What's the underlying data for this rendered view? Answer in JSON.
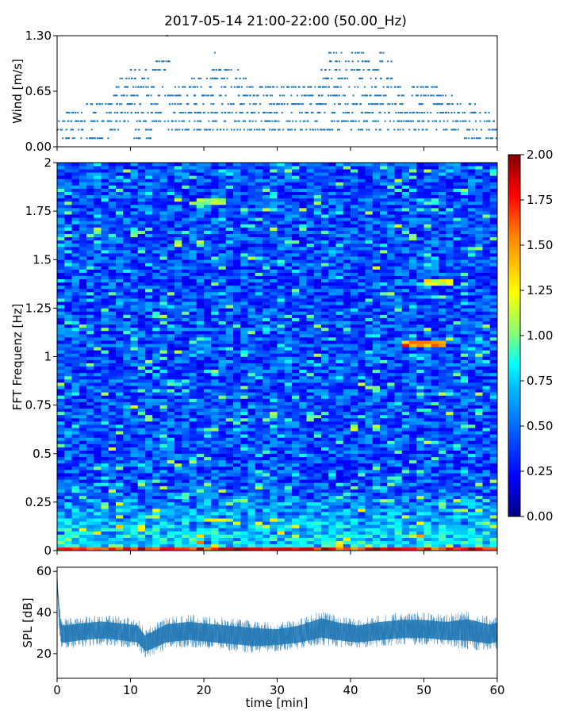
{
  "title": "2017-05-14 21:00-22:00 (50.00_Hz)",
  "colors": {
    "series": "#1f77b4",
    "colormap": [
      "#00007f",
      "#0000ff",
      "#007fff",
      "#00ffff",
      "#7fff7f",
      "#ffff00",
      "#ff7f00",
      "#ff0000",
      "#7f0000"
    ]
  },
  "chart_data": [
    {
      "id": "wind",
      "type": "scatter",
      "title": "2017-05-14 21:00-22:00 (50.00_Hz)",
      "xlabel": "",
      "ylabel": "Wind [m/s]",
      "xlim": [
        0,
        60
      ],
      "ylim": [
        0,
        1.3
      ],
      "yticks": [
        "0.00",
        "0.65",
        "1.30"
      ],
      "ytick_values": [
        0,
        0.65,
        1.3
      ],
      "x_tick_values": [
        0,
        10,
        20,
        30,
        40,
        50,
        60
      ],
      "value_levels": [
        0.1,
        0.2,
        0.3,
        0.4,
        0.5,
        0.6,
        0.7,
        0.8,
        0.9,
        1.0,
        1.1,
        1.3
      ],
      "level_ranges": [
        {
          "y": 0.1,
          "x": [
            [
              0,
              7
            ],
            [
              10,
              13
            ],
            [
              55,
              60
            ]
          ]
        },
        {
          "y": 0.2,
          "x": [
            [
              0,
              5
            ],
            [
              7,
              50
            ],
            [
              50,
              60
            ]
          ]
        },
        {
          "y": 0.3,
          "x": [
            [
              0,
              60
            ]
          ]
        },
        {
          "y": 0.4,
          "x": [
            [
              1,
              59
            ]
          ]
        },
        {
          "y": 0.5,
          "x": [
            [
              4,
              58
            ]
          ]
        },
        {
          "y": 0.6,
          "x": [
            [
              7,
              54
            ]
          ]
        },
        {
          "y": 0.7,
          "x": [
            [
              8,
              53
            ]
          ]
        },
        {
          "y": 0.8,
          "x": [
            [
              8,
              13
            ],
            [
              18,
              26
            ],
            [
              36,
              46
            ]
          ]
        },
        {
          "y": 0.9,
          "x": [
            [
              10,
              15
            ],
            [
              21,
              25
            ],
            [
              36,
              44
            ]
          ]
        },
        {
          "y": 1.0,
          "x": [
            [
              13,
              16
            ],
            [
              37,
              43
            ],
            [
              44,
              46
            ]
          ]
        },
        {
          "y": 1.1,
          "x": [
            [
              21.5,
              21.5
            ],
            [
              37,
              42
            ],
            [
              44,
              45
            ]
          ]
        },
        {
          "y": 1.3,
          "x": [
            [
              15,
              15
            ]
          ]
        }
      ]
    },
    {
      "id": "spectrogram",
      "type": "heatmap",
      "xlabel": "",
      "ylabel": "FFT Frequenz [Hz]",
      "xlim": [
        0,
        60
      ],
      "ylim": [
        0,
        2
      ],
      "yticks": [
        "0",
        "0.25",
        "0.5",
        "0.75",
        "1",
        "1.25",
        "1.5",
        "1.75",
        "2"
      ],
      "ytick_values": [
        0,
        0.25,
        0.5,
        0.75,
        1,
        1.25,
        1.5,
        1.75,
        2
      ],
      "x_tick_values": [
        0,
        10,
        20,
        30,
        40,
        50,
        60
      ],
      "colorbar": {
        "range": [
          0,
          2
        ],
        "ticks": [
          "0.00",
          "0.25",
          "0.50",
          "0.75",
          "1.00",
          "1.25",
          "1.50",
          "1.75",
          "2.00"
        ],
        "tick_values": [
          0,
          0.25,
          0.5,
          0.75,
          1,
          1.25,
          1.5,
          1.75,
          2
        ]
      },
      "typical_value_range": [
        0.2,
        0.6
      ],
      "hotspots": [
        {
          "x": [
            19,
            23
          ],
          "y": 1.8,
          "value": 1.1
        },
        {
          "x": [
            50,
            54
          ],
          "y": 1.38,
          "value": 1.2
        },
        {
          "x": [
            47,
            53
          ],
          "y": 1.07,
          "value": 1.5
        },
        {
          "x": [
            0,
            60
          ],
          "y": 0.01,
          "value": 1.7
        }
      ]
    },
    {
      "id": "spl",
      "type": "area",
      "xlabel": "time [min]",
      "ylabel": "SPL [dB]",
      "xlim": [
        0,
        60
      ],
      "ylim": [
        8,
        62
      ],
      "yticks": [
        "20",
        "40",
        "60"
      ],
      "ytick_values": [
        20,
        40,
        60
      ],
      "xticks": [
        "0",
        "10",
        "20",
        "30",
        "40",
        "50",
        "60"
      ],
      "xtick_values": [
        0,
        10,
        20,
        30,
        40,
        50,
        60
      ],
      "envelope": {
        "x": [
          0,
          0.5,
          1,
          3,
          6,
          9,
          11,
          12,
          13,
          15,
          18,
          21,
          24,
          27,
          30,
          33,
          36,
          38,
          41,
          44,
          47,
          50,
          53,
          56,
          59,
          60
        ],
        "low": [
          50,
          22,
          22,
          23,
          24,
          23,
          22,
          18,
          19,
          22,
          23,
          22,
          21,
          20,
          21,
          22,
          24,
          23,
          22,
          23,
          24,
          24,
          23,
          22,
          21,
          22
        ],
        "high": [
          60,
          38,
          37,
          38,
          39,
          38,
          37,
          32,
          34,
          38,
          39,
          38,
          37,
          36,
          35,
          37,
          41,
          39,
          37,
          39,
          40,
          40,
          39,
          41,
          38,
          39
        ]
      }
    }
  ]
}
